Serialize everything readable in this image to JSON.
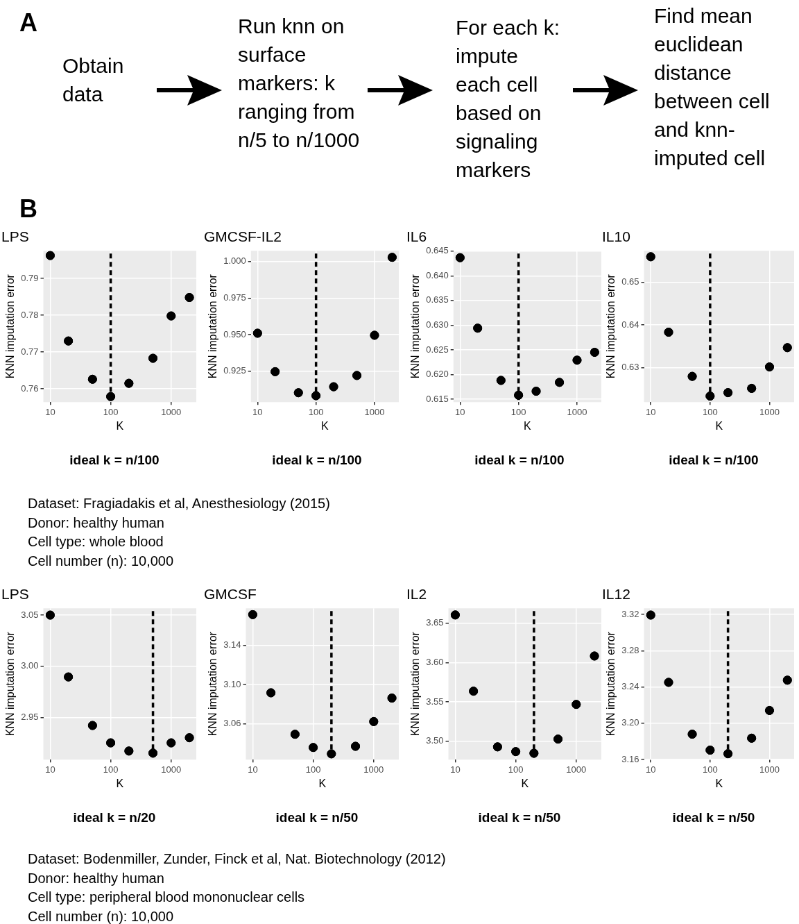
{
  "chart_data": [
    {
      "type": "other",
      "title": "A",
      "annotations": [
        "Obtain data",
        "Run knn on surface markers: k ranging from n/5 to n/1000",
        "For each k: impute each cell based on signaling markers",
        "Find mean euclidean distance between cell and knn-imputed cell"
      ]
    },
    {
      "type": "other",
      "title": "B"
    },
    {
      "type": "scatter",
      "title": "LPS",
      "xlabel": "K",
      "ylabel": "KNN imputation error",
      "x": [
        10,
        20,
        50,
        100,
        200,
        500,
        1000,
        2000
      ],
      "values": [
        0.7962,
        0.773,
        0.7626,
        0.7579,
        0.7615,
        0.7683,
        0.7798,
        0.7848
      ],
      "color": "#000000",
      "log": "x",
      "xlim": [
        7.7,
        2600
      ],
      "xticks": [
        10,
        100,
        1000
      ],
      "ylim": [
        0.7564,
        0.7975
      ],
      "yticks": [
        0.76,
        0.77,
        0.78,
        0.79
      ],
      "grid": true,
      "marker": "circle",
      "ref_lines": [
        {
          "axis": "x",
          "value": 100,
          "color": "#000000",
          "line_style": "dashed"
        }
      ],
      "annotations": [
        "ideal k = n/100"
      ]
    },
    {
      "type": "scatter",
      "title": "GMCSF-IL2",
      "xlabel": "K",
      "ylabel": "KNN imputation error",
      "x": [
        10,
        20,
        50,
        100,
        200,
        500,
        1000,
        2000
      ],
      "values": [
        0.951,
        0.9247,
        0.9103,
        0.9083,
        0.9144,
        0.9221,
        0.9496,
        1.0029
      ],
      "color": "#000000",
      "log": "x",
      "xlim": [
        7.7,
        2600
      ],
      "xticks": [
        10,
        100,
        1000
      ],
      "ylim": [
        0.9039,
        1.0074
      ],
      "yticks": [
        0.925,
        {
          "value": 0.95,
          "label": "0.950"
        },
        0.975,
        {
          "value": 1,
          "label": "1.000"
        }
      ],
      "grid": true,
      "marker": "circle",
      "ref_lines": [
        {
          "axis": "x",
          "value": 100,
          "color": "#000000",
          "line_style": "dashed"
        }
      ],
      "annotations": [
        "ideal k = n/100"
      ]
    },
    {
      "type": "scatter",
      "title": "IL6",
      "xlabel": "K",
      "ylabel": "KNN imputation error",
      "x": [
        10,
        20,
        50,
        100,
        200,
        500,
        1000,
        2000
      ],
      "values": [
        0.6437,
        0.6294,
        0.6188,
        0.6158,
        0.6166,
        0.6184,
        0.6229,
        0.6245
      ],
      "color": "#000000",
      "log": "x",
      "xlim": [
        7.7,
        2600
      ],
      "xticks": [
        10,
        100,
        1000
      ],
      "ylim": [
        0.6144,
        0.6451
      ],
      "yticks": [
        0.615,
        {
          "value": 0.62,
          "label": "0.620"
        },
        0.625,
        {
          "value": 0.63,
          "label": "0.630"
        },
        0.635,
        {
          "value": 0.64,
          "label": "0.640"
        },
        0.645
      ],
      "grid": true,
      "marker": "circle",
      "ref_lines": [
        {
          "axis": "x",
          "value": 100,
          "color": "#000000",
          "line_style": "dashed"
        }
      ],
      "annotations": [
        "ideal k = n/100"
      ]
    },
    {
      "type": "scatter",
      "title": "IL10",
      "xlabel": "K",
      "ylabel": "KNN imputation error",
      "x": [
        10,
        20,
        50,
        100,
        200,
        500,
        1000,
        2000
      ],
      "values": [
        0.6559,
        0.6383,
        0.628,
        0.6234,
        0.6242,
        0.6252,
        0.6302,
        0.6347
      ],
      "color": "#000000",
      "log": "x",
      "xlim": [
        7.7,
        2600
      ],
      "xticks": [
        10,
        100,
        1000
      ],
      "ylim": [
        0.622,
        0.6573
      ],
      "yticks": [
        0.63,
        0.64,
        0.65
      ],
      "grid": true,
      "marker": "circle",
      "ref_lines": [
        {
          "axis": "x",
          "value": 100,
          "color": "#000000",
          "line_style": "dashed"
        }
      ],
      "annotations": [
        "ideal k = n/100"
      ]
    },
    {
      "type": "other",
      "annotations": [
        "Dataset: Fragiadakis et al, Anesthesiology (2015)",
        "Donor: healthy human",
        "Cell type: whole blood",
        "Cell number (n): 10,000"
      ]
    },
    {
      "type": "scatter",
      "title": "LPS",
      "xlabel": "K",
      "ylabel": "KNN imputation error",
      "x": [
        10,
        20,
        50,
        100,
        200,
        500,
        1000,
        2000
      ],
      "values": [
        3.05,
        2.9895,
        2.942,
        2.925,
        2.917,
        2.915,
        2.925,
        2.93
      ],
      "color": "#000000",
      "log": "x",
      "xlim": [
        7.7,
        2600
      ],
      "xticks": [
        10,
        100,
        1000
      ],
      "ylim": [
        2.9086,
        3.0567
      ],
      "yticks": [
        2.95,
        {
          "value": 3,
          "label": "3.00"
        },
        3.05
      ],
      "grid": true,
      "marker": "circle",
      "ref_lines": [
        {
          "axis": "x",
          "value": 500,
          "color": "#000000",
          "line_style": "dashed"
        }
      ],
      "annotations": [
        "ideal k = n/20"
      ]
    },
    {
      "type": "scatter",
      "title": "GMCSF",
      "xlabel": "K",
      "ylabel": "KNN imputation error",
      "x": [
        10,
        20,
        50,
        100,
        200,
        500,
        1000,
        2000
      ],
      "values": [
        3.1715,
        3.0916,
        3.0492,
        3.0357,
        3.0292,
        3.0369,
        3.0622,
        3.0862
      ],
      "color": "#000000",
      "log": "x",
      "xlim": [
        7.7,
        2600
      ],
      "xticks": [
        10,
        100,
        1000
      ],
      "ylim": [
        3.0233,
        3.178
      ],
      "yticks": [
        3.06,
        {
          "value": 3.1,
          "label": "3.10"
        },
        3.14
      ],
      "grid": true,
      "marker": "circle",
      "ref_lines": [
        {
          "axis": "x",
          "value": 200,
          "color": "#000000",
          "line_style": "dashed"
        }
      ],
      "annotations": [
        "ideal k = n/50"
      ]
    },
    {
      "type": "scatter",
      "title": "IL2",
      "xlabel": "K",
      "ylabel": "KNN imputation error",
      "x": [
        10,
        20,
        50,
        100,
        200,
        500,
        1000,
        2000
      ],
      "values": [
        3.6605,
        3.5636,
        3.4928,
        3.4868,
        3.4847,
        3.5027,
        3.5468,
        3.6083
      ],
      "color": "#000000",
      "log": "x",
      "xlim": [
        7.7,
        2600
      ],
      "xticks": [
        10,
        100,
        1000
      ],
      "ylim": [
        3.4766,
        3.669
      ],
      "yticks": [
        {
          "value": 3.5,
          "label": "3.50"
        },
        3.55,
        {
          "value": 3.6,
          "label": "3.60"
        },
        3.65
      ],
      "grid": true,
      "marker": "circle",
      "ref_lines": [
        {
          "axis": "x",
          "value": 200,
          "color": "#000000",
          "line_style": "dashed"
        }
      ],
      "annotations": [
        "ideal k = n/50"
      ]
    },
    {
      "type": "scatter",
      "title": "IL12",
      "xlabel": "K",
      "ylabel": "KNN imputation error",
      "x": [
        10,
        20,
        50,
        100,
        200,
        500,
        1000,
        2000
      ],
      "values": [
        3.3192,
        3.2451,
        3.188,
        3.1704,
        3.1665,
        3.1836,
        3.2141,
        3.2475
      ],
      "color": "#000000",
      "log": "x",
      "xlim": [
        7.7,
        2600
      ],
      "xticks": [
        10,
        100,
        1000
      ],
      "ylim": [
        3.16,
        3.3267
      ],
      "yticks": [
        3.16,
        {
          "value": 3.2,
          "label": "3.20"
        },
        3.24,
        3.28,
        3.32
      ],
      "grid": true,
      "marker": "circle",
      "ref_lines": [
        {
          "axis": "x",
          "value": 200,
          "color": "#000000",
          "line_style": "dashed"
        }
      ],
      "annotations": [
        "ideal k = n/50"
      ]
    },
    {
      "type": "other",
      "annotations": [
        "Dataset: Bodenmiller, Zunder, Finck et al, Nat. Biotechnology (2012)",
        "Donor: healthy human",
        "Cell type: peripheral blood mononuclear cells",
        "Cell number (n): 10,000"
      ]
    }
  ]
}
